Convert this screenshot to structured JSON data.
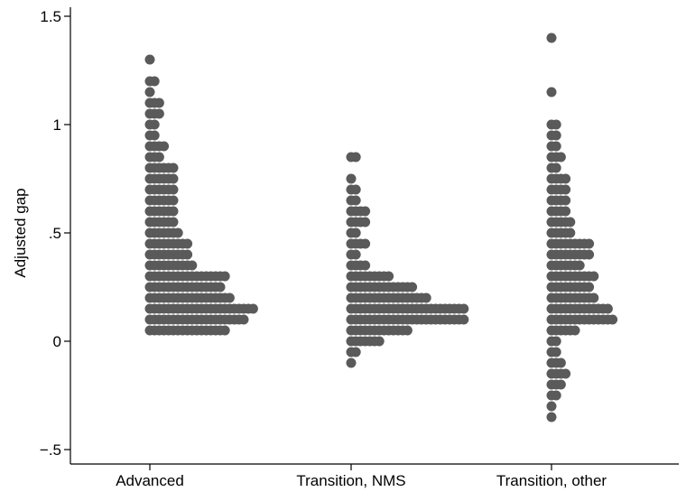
{
  "chart_data": {
    "type": "dot",
    "title": "",
    "xlabel": "",
    "ylabel": "Adjusted gap",
    "ylim": [
      -0.55,
      1.55
    ],
    "yticks": [
      {
        "value": -0.5,
        "label": "−.5"
      },
      {
        "value": 0,
        "label": "0"
      },
      {
        "value": 0.5,
        "label": ".5"
      },
      {
        "value": 1,
        "label": "1"
      },
      {
        "value": 1.5,
        "label": "1.5"
      }
    ],
    "categories": [
      "Advanced",
      "Transition, NMS",
      "Transition, other"
    ],
    "bin_width": 0.05,
    "series": [
      {
        "category": "Advanced",
        "bins": [
          {
            "y": 0.05,
            "count": 17
          },
          {
            "y": 0.1,
            "count": 21
          },
          {
            "y": 0.15,
            "count": 23
          },
          {
            "y": 0.2,
            "count": 18
          },
          {
            "y": 0.25,
            "count": 16
          },
          {
            "y": 0.3,
            "count": 17
          },
          {
            "y": 0.35,
            "count": 10
          },
          {
            "y": 0.4,
            "count": 9
          },
          {
            "y": 0.45,
            "count": 9
          },
          {
            "y": 0.5,
            "count": 7
          },
          {
            "y": 0.55,
            "count": 6
          },
          {
            "y": 0.6,
            "count": 6
          },
          {
            "y": 0.65,
            "count": 6
          },
          {
            "y": 0.7,
            "count": 6
          },
          {
            "y": 0.75,
            "count": 6
          },
          {
            "y": 0.8,
            "count": 6
          },
          {
            "y": 0.85,
            "count": 3
          },
          {
            "y": 0.9,
            "count": 4
          },
          {
            "y": 0.95,
            "count": 2
          },
          {
            "y": 1.0,
            "count": 2
          },
          {
            "y": 1.05,
            "count": 3
          },
          {
            "y": 1.1,
            "count": 3
          },
          {
            "y": 1.15,
            "count": 1
          },
          {
            "y": 1.2,
            "count": 2
          },
          {
            "y": 1.3,
            "count": 1
          }
        ]
      },
      {
        "category": "Transition, NMS",
        "bins": [
          {
            "y": -0.1,
            "count": 1
          },
          {
            "y": -0.05,
            "count": 2
          },
          {
            "y": 0.0,
            "count": 7
          },
          {
            "y": 0.05,
            "count": 13
          },
          {
            "y": 0.1,
            "count": 25
          },
          {
            "y": 0.15,
            "count": 25
          },
          {
            "y": 0.2,
            "count": 17
          },
          {
            "y": 0.25,
            "count": 14
          },
          {
            "y": 0.3,
            "count": 9
          },
          {
            "y": 0.35,
            "count": 4
          },
          {
            "y": 0.4,
            "count": 2
          },
          {
            "y": 0.45,
            "count": 4
          },
          {
            "y": 0.5,
            "count": 2
          },
          {
            "y": 0.55,
            "count": 4
          },
          {
            "y": 0.6,
            "count": 4
          },
          {
            "y": 0.65,
            "count": 2
          },
          {
            "y": 0.7,
            "count": 2
          },
          {
            "y": 0.75,
            "count": 1
          },
          {
            "y": 0.85,
            "count": 2
          }
        ]
      },
      {
        "category": "Transition, other",
        "bins": [
          {
            "y": -0.35,
            "count": 1
          },
          {
            "y": -0.3,
            "count": 1
          },
          {
            "y": -0.25,
            "count": 2
          },
          {
            "y": -0.2,
            "count": 3
          },
          {
            "y": -0.15,
            "count": 4
          },
          {
            "y": -0.1,
            "count": 3
          },
          {
            "y": -0.05,
            "count": 2
          },
          {
            "y": 0.0,
            "count": 2
          },
          {
            "y": 0.05,
            "count": 6
          },
          {
            "y": 0.1,
            "count": 14
          },
          {
            "y": 0.15,
            "count": 13
          },
          {
            "y": 0.2,
            "count": 10
          },
          {
            "y": 0.25,
            "count": 9
          },
          {
            "y": 0.3,
            "count": 10
          },
          {
            "y": 0.35,
            "count": 7
          },
          {
            "y": 0.4,
            "count": 9
          },
          {
            "y": 0.45,
            "count": 9
          },
          {
            "y": 0.5,
            "count": 5
          },
          {
            "y": 0.55,
            "count": 5
          },
          {
            "y": 0.6,
            "count": 4
          },
          {
            "y": 0.65,
            "count": 4
          },
          {
            "y": 0.7,
            "count": 4
          },
          {
            "y": 0.75,
            "count": 4
          },
          {
            "y": 0.8,
            "count": 2
          },
          {
            "y": 0.85,
            "count": 3
          },
          {
            "y": 0.9,
            "count": 2
          },
          {
            "y": 0.95,
            "count": 2
          },
          {
            "y": 1.0,
            "count": 2
          },
          {
            "y": 1.15,
            "count": 1
          },
          {
            "y": 1.4,
            "count": 1
          }
        ]
      }
    ],
    "marker_color": "#5a5a5a",
    "grid": false,
    "legend": "none"
  }
}
